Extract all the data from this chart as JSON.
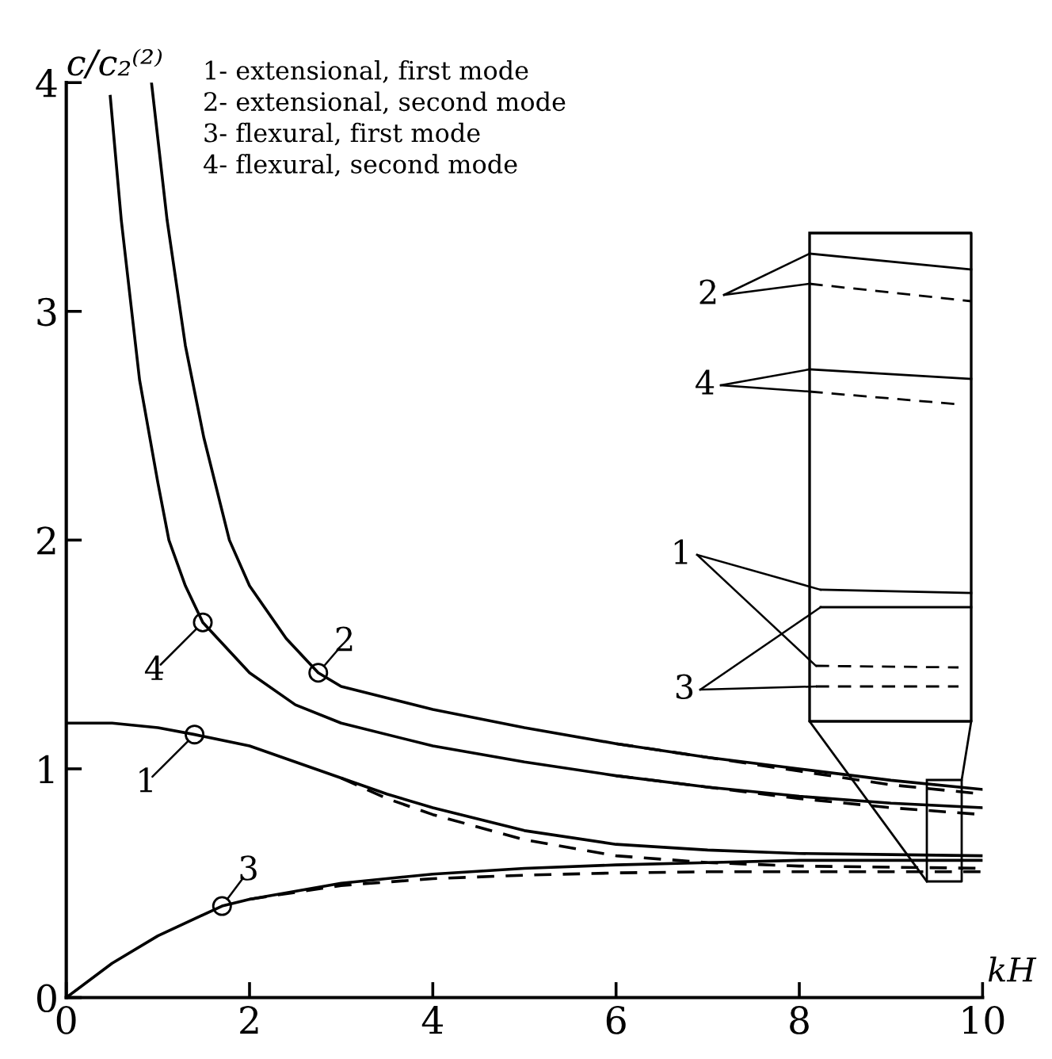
{
  "chart_data": {
    "type": "line",
    "xlabel": "kH",
    "ylabel": "c/c₂⁽²⁾",
    "xlim": [
      0,
      10
    ],
    "ylim": [
      0,
      4
    ],
    "xticks": [
      0,
      2,
      4,
      6,
      8,
      10
    ],
    "yticks": [
      0,
      1,
      2,
      3,
      4
    ],
    "grid": false,
    "legend": false,
    "series": [
      {
        "color": "#000000",
        "line_style": "solid",
        "x": [
          0.93,
          1.1,
          1.3,
          1.5,
          1.78,
          2.0,
          2.4,
          2.75,
          3.0,
          3.5,
          4,
          5,
          6,
          7,
          8,
          9,
          10
        ],
        "values": [
          4.0,
          3.4,
          2.85,
          2.45,
          2.0,
          1.8,
          1.57,
          1.42,
          1.36,
          1.31,
          1.26,
          1.18,
          1.11,
          1.05,
          1.0,
          0.95,
          0.91
        ]
      },
      {
        "color": "#000000",
        "line_style": "dashed",
        "x": [
          6,
          7,
          8,
          9,
          10
        ],
        "values": [
          1.11,
          1.05,
          0.99,
          0.93,
          0.89
        ]
      },
      {
        "color": "#000000",
        "line_style": "solid",
        "x": [
          0.48,
          0.6,
          0.8,
          1.0,
          1.12,
          1.3,
          1.49,
          2.0,
          2.5,
          3,
          4,
          5,
          6,
          7,
          8,
          9,
          10
        ],
        "values": [
          3.94,
          3.4,
          2.7,
          2.25,
          2.0,
          1.8,
          1.64,
          1.42,
          1.28,
          1.2,
          1.1,
          1.03,
          0.97,
          0.92,
          0.88,
          0.85,
          0.83
        ]
      },
      {
        "color": "#000000",
        "line_style": "dashed",
        "x": [
          6,
          7,
          8,
          9,
          10
        ],
        "values": [
          0.97,
          0.92,
          0.87,
          0.83,
          0.8
        ]
      },
      {
        "color": "#000000",
        "line_style": "solid",
        "x": [
          0,
          0.5,
          1.0,
          1.4,
          2,
          2.5,
          3,
          3.5,
          4,
          5,
          6,
          7,
          8,
          9,
          10
        ],
        "values": [
          1.2,
          1.2,
          1.18,
          1.15,
          1.1,
          1.03,
          0.96,
          0.89,
          0.83,
          0.73,
          0.67,
          0.645,
          0.63,
          0.625,
          0.62
        ]
      },
      {
        "color": "#000000",
        "line_style": "dashed",
        "x": [
          3,
          3.5,
          4,
          5,
          6,
          7,
          8,
          9,
          10
        ],
        "values": [
          0.96,
          0.87,
          0.8,
          0.69,
          0.62,
          0.59,
          0.575,
          0.57,
          0.565
        ]
      },
      {
        "color": "#000000",
        "line_style": "solid",
        "x": [
          0,
          0.5,
          1,
          1.7,
          2,
          3,
          4,
          5,
          6,
          7,
          8,
          9,
          10
        ],
        "values": [
          0,
          0.15,
          0.27,
          0.4,
          0.43,
          0.5,
          0.54,
          0.565,
          0.58,
          0.59,
          0.6,
          0.6,
          0.6
        ]
      },
      {
        "color": "#000000",
        "line_style": "dashed",
        "x": [
          2,
          3,
          4,
          5,
          6,
          7,
          8,
          9,
          10
        ],
        "values": [
          0.43,
          0.49,
          0.52,
          0.535,
          0.545,
          0.55,
          0.55,
          0.55,
          0.55
        ]
      }
    ],
    "annotations": [
      "1- extensional, first mode\n2- extensional, second mode\n3- flexural, first mode\n4- flexural, second mode",
      {
        "text": "2",
        "x": 2.75,
        "y": 1.42
      },
      {
        "text": "4",
        "x": 1.49,
        "y": 1.64
      },
      {
        "text": "1",
        "x": 1.4,
        "y": 1.15
      },
      {
        "text": "3",
        "x": 1.7,
        "y": 0.4
      },
      "2",
      "4",
      "1",
      "3"
    ]
  }
}
